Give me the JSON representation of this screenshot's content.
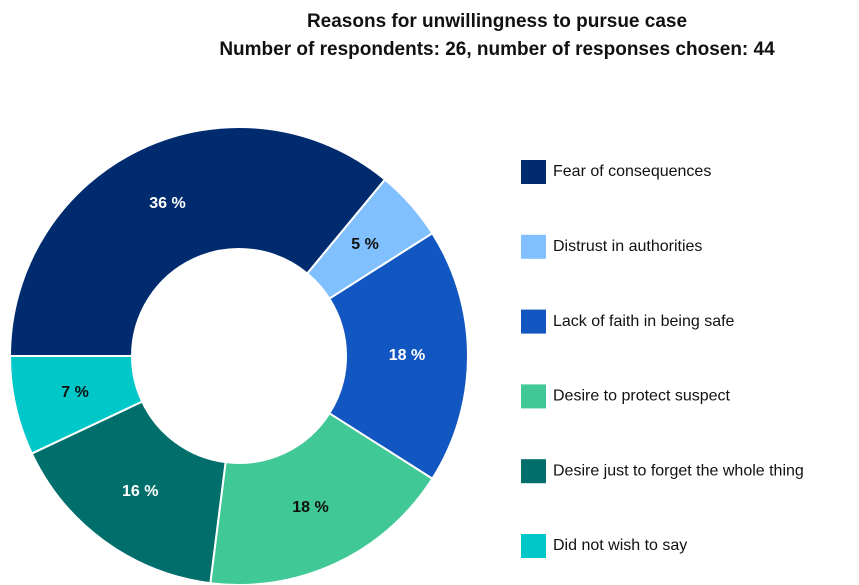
{
  "chart_data": {
    "type": "donut",
    "title": "Reasons for unwillingness to pursue case",
    "subtitle": "Number of respondents: 26, number of responses chosen: 44",
    "categories": [
      "Fear of consequences",
      "Distrust in authorities",
      "Lack of faith in being safe",
      "Desire to protect suspect",
      "Desire just to forget the whole thing",
      "Did not wish to say"
    ],
    "values": [
      36,
      5,
      18,
      18,
      16,
      7
    ],
    "value_labels": [
      "36 %",
      "5 %",
      "18 %",
      "18 %",
      "16 %",
      "7 %"
    ],
    "colors": [
      "#002b6e",
      "#80c0ff",
      "#1256c2",
      "#40c896",
      "#006e6b",
      "#00c8c8"
    ],
    "legend": "right"
  }
}
